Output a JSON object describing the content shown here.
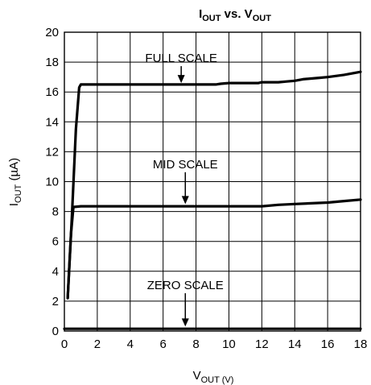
{
  "chart_data": {
    "type": "line",
    "title": {
      "main1": "I",
      "sub1": "OUT",
      "mid": " vs. V",
      "sub2": "OUT"
    },
    "xlabel": {
      "main": "V",
      "sub": "OUT",
      "unit": " (V)"
    },
    "ylabel": {
      "main": "I",
      "sub": "OUT",
      "unit": " (µA)"
    },
    "xlim": [
      0,
      18
    ],
    "ylim": [
      0,
      20
    ],
    "xticks": [
      0,
      2,
      4,
      6,
      8,
      10,
      12,
      14,
      16,
      18
    ],
    "yticks": [
      0,
      2,
      4,
      6,
      8,
      10,
      12,
      14,
      16,
      18,
      20
    ],
    "grid": true,
    "series": [
      {
        "name": "FULL SCALE",
        "x": [
          0.2,
          0.45,
          0.7,
          0.9,
          1.0,
          2,
          4,
          6,
          8,
          9.2,
          9.5,
          10,
          11,
          11.8,
          12,
          13,
          13.5,
          14,
          14.5,
          15,
          15.5,
          16,
          17,
          18
        ],
        "y": [
          2.2,
          7.5,
          13.5,
          16.3,
          16.5,
          16.5,
          16.5,
          16.5,
          16.5,
          16.5,
          16.55,
          16.6,
          16.6,
          16.6,
          16.65,
          16.65,
          16.7,
          16.75,
          16.85,
          16.9,
          16.95,
          17.0,
          17.15,
          17.35
        ],
        "label_at": {
          "x": 7.1,
          "y": 18.0
        },
        "arrow_to": {
          "x": 7.1,
          "y": 16.6
        }
      },
      {
        "name": "MID SCALE",
        "x": [
          0.2,
          0.4,
          0.55,
          1,
          4,
          8,
          10,
          12,
          13,
          14,
          15,
          16,
          17,
          18
        ],
        "y": [
          2.2,
          6.5,
          8.3,
          8.35,
          8.35,
          8.35,
          8.35,
          8.35,
          8.45,
          8.5,
          8.55,
          8.6,
          8.7,
          8.8
        ],
        "label_at": {
          "x": 7.35,
          "y": 10.9
        },
        "arrow_to": {
          "x": 7.35,
          "y": 8.5
        }
      },
      {
        "name": "ZERO SCALE",
        "x": [
          0,
          18
        ],
        "y": [
          0.15,
          0.15
        ],
        "label_at": {
          "x": 7.35,
          "y": 2.8
        },
        "arrow_to": {
          "x": 7.35,
          "y": 0.3
        }
      }
    ]
  }
}
